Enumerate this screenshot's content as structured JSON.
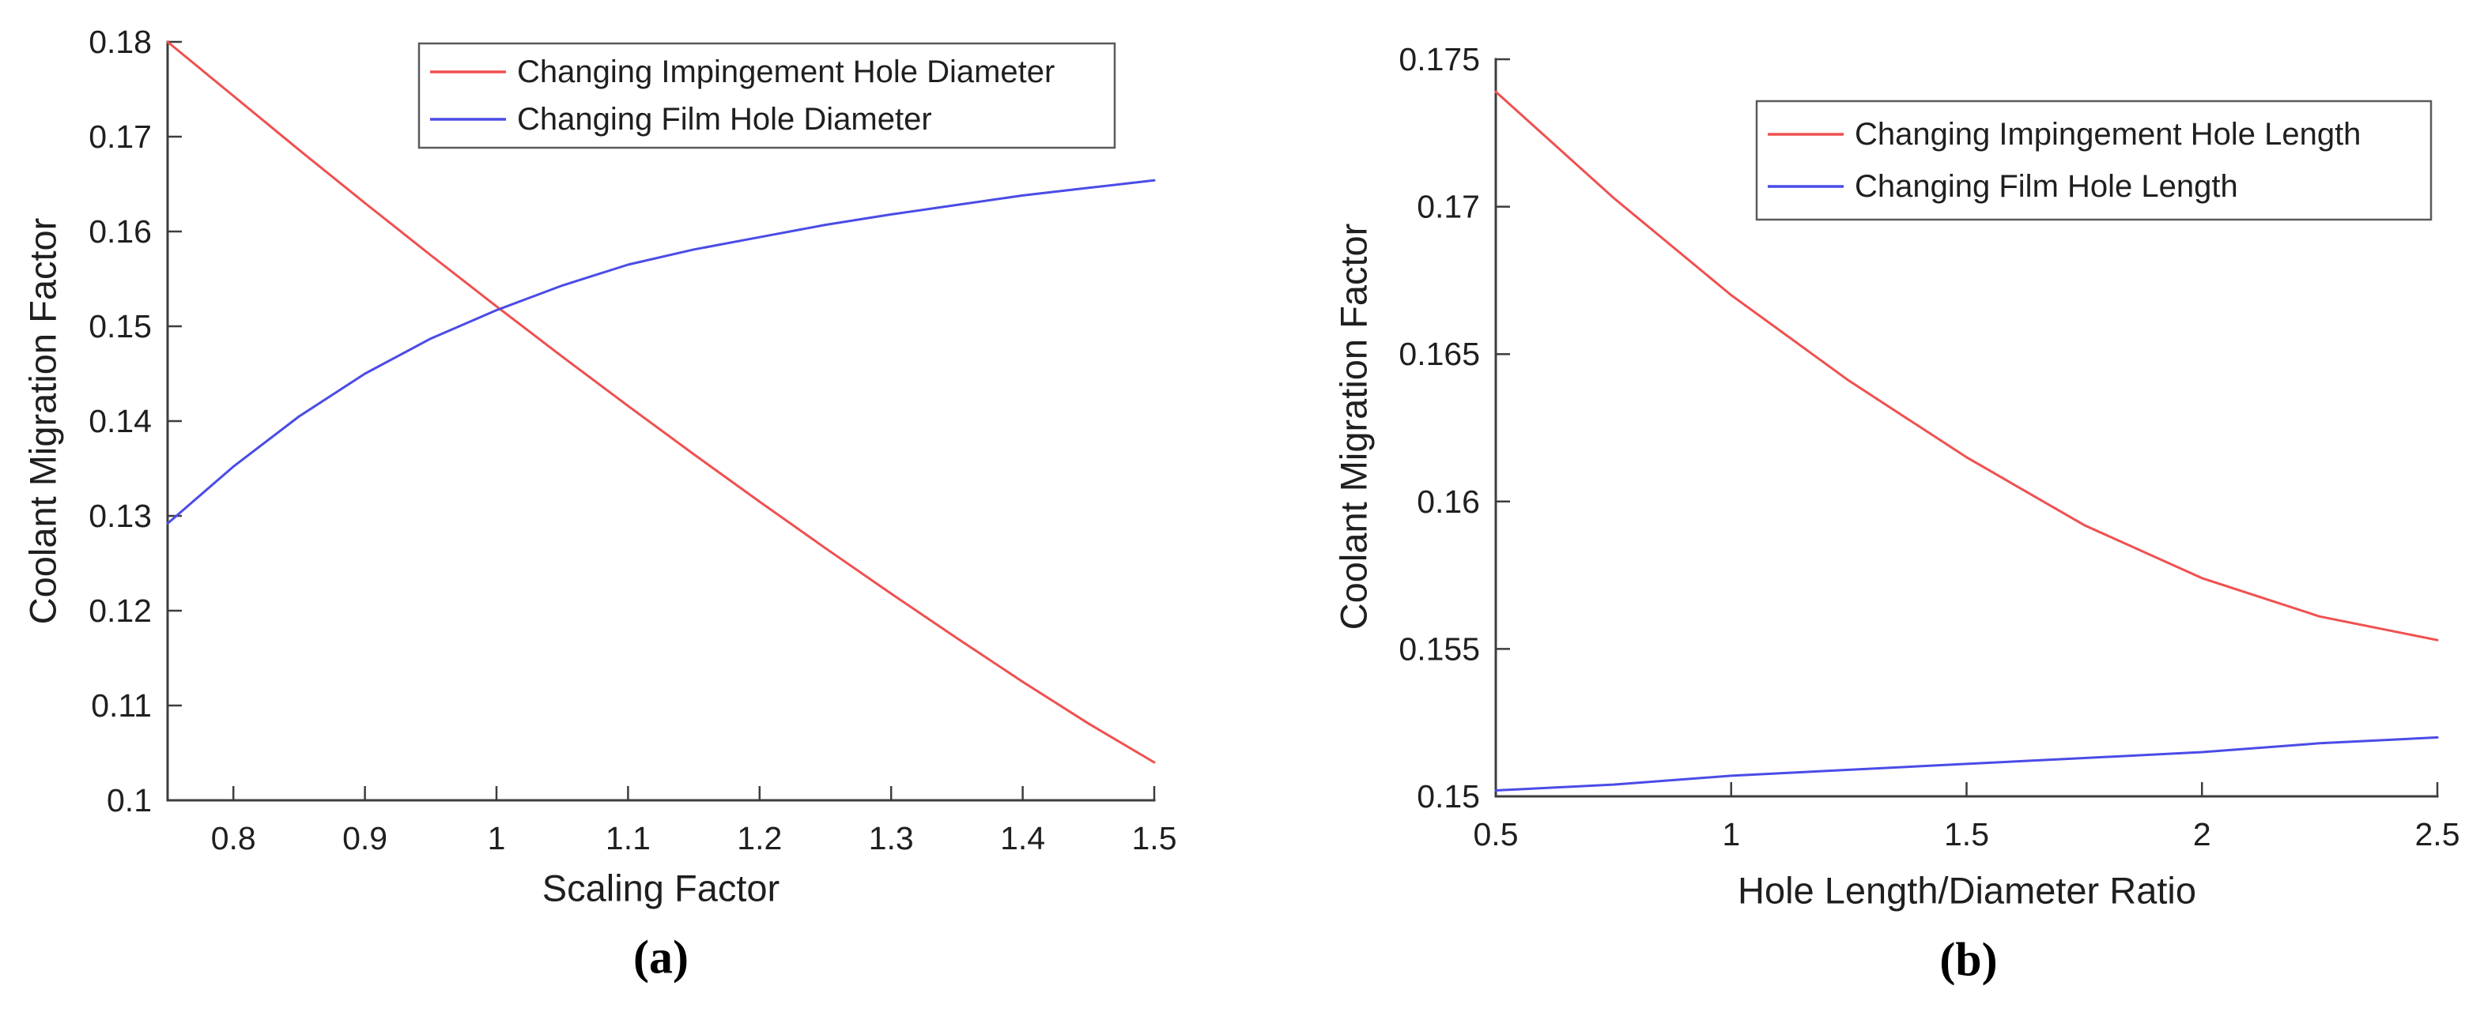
{
  "styles": {
    "background": "#ffffff",
    "axis_color": "#3d3d3d",
    "text_color": "#1f1f1f",
    "legend_border": "#5a5a5a",
    "legend_background": "#ffffff",
    "red": "#f05050",
    "blue": "#4a4ce6"
  },
  "chart_data": [
    {
      "id": "a",
      "type": "line",
      "caption": "(a)",
      "xlabel": "Scaling Factor",
      "ylabel": "Coolant Migration Factor",
      "xlim": [
        0.75,
        1.5
      ],
      "ylim": [
        0.1,
        0.18
      ],
      "grid": false,
      "legend_position": "top-inside",
      "xticks": [
        {
          "v": 0.8,
          "label": "0.8"
        },
        {
          "v": 0.9,
          "label": "0.9"
        },
        {
          "v": 1.0,
          "label": "1"
        },
        {
          "v": 1.1,
          "label": "1.1"
        },
        {
          "v": 1.2,
          "label": "1.2"
        },
        {
          "v": 1.3,
          "label": "1.3"
        },
        {
          "v": 1.4,
          "label": "1.4"
        },
        {
          "v": 1.5,
          "label": "1.5"
        }
      ],
      "yticks": [
        {
          "v": 0.1,
          "label": "0.1"
        },
        {
          "v": 0.11,
          "label": "0.11"
        },
        {
          "v": 0.12,
          "label": "0.12"
        },
        {
          "v": 0.13,
          "label": "0.13"
        },
        {
          "v": 0.14,
          "label": "0.14"
        },
        {
          "v": 0.15,
          "label": "0.15"
        },
        {
          "v": 0.16,
          "label": "0.16"
        },
        {
          "v": 0.17,
          "label": "0.17"
        },
        {
          "v": 0.18,
          "label": "0.18"
        }
      ],
      "x": [
        0.75,
        0.8,
        0.85,
        0.9,
        0.95,
        1.0,
        1.05,
        1.1,
        1.15,
        1.2,
        1.25,
        1.3,
        1.35,
        1.4,
        1.45,
        1.5
      ],
      "series": [
        {
          "name": "Changing Impingement Hole Diameter",
          "color": "#f05050",
          "values": [
            0.18,
            0.1743,
            0.1686,
            0.163,
            0.1575,
            0.1521,
            0.1468,
            0.1416,
            0.1365,
            0.1315,
            0.1266,
            0.1218,
            0.1171,
            0.1125,
            0.1081,
            0.104
          ]
        },
        {
          "name": "Changing Film Hole Diameter",
          "color": "#4a4ce6",
          "values": [
            0.1292,
            0.1352,
            0.1405,
            0.145,
            0.1487,
            0.1517,
            0.1543,
            0.1565,
            0.1581,
            0.1594,
            0.1607,
            0.1618,
            0.1628,
            0.1638,
            0.1646,
            0.1654
          ]
        }
      ]
    },
    {
      "id": "b",
      "type": "line",
      "caption": "(b)",
      "xlabel": "Hole Length/Diameter Ratio",
      "ylabel": "Coolant Migration Factor",
      "xlim": [
        0.5,
        2.5
      ],
      "ylim": [
        0.15,
        0.175
      ],
      "grid": false,
      "legend_position": "top-inside",
      "xticks": [
        {
          "v": 0.5,
          "label": "0.5"
        },
        {
          "v": 1.0,
          "label": "1"
        },
        {
          "v": 1.5,
          "label": "1.5"
        },
        {
          "v": 2.0,
          "label": "2"
        },
        {
          "v": 2.5,
          "label": "2.5"
        }
      ],
      "yticks": [
        {
          "v": 0.15,
          "label": "0.15"
        },
        {
          "v": 0.155,
          "label": "0.155"
        },
        {
          "v": 0.16,
          "label": "0.16"
        },
        {
          "v": 0.165,
          "label": "0.165"
        },
        {
          "v": 0.17,
          "label": "0.17"
        },
        {
          "v": 0.175,
          "label": "0.175"
        }
      ],
      "x": [
        0.5,
        0.75,
        1.0,
        1.25,
        1.5,
        1.75,
        2.0,
        2.25,
        2.5
      ],
      "series": [
        {
          "name": "Changing Impingement Hole Length",
          "color": "#f05050",
          "values": [
            0.1739,
            0.1703,
            0.167,
            0.1641,
            0.1615,
            0.1592,
            0.1574,
            0.1561,
            0.1553
          ]
        },
        {
          "name": "Changing Film Hole Length",
          "color": "#4a4ce6",
          "values": [
            0.1502,
            0.1504,
            0.1507,
            0.1509,
            0.1511,
            0.1513,
            0.1515,
            0.1518,
            0.152
          ]
        }
      ]
    }
  ]
}
